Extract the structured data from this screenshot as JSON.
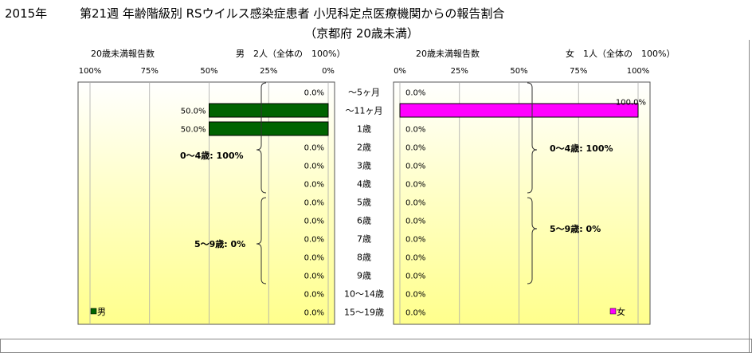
{
  "title": {
    "year": "2015年",
    "line1": "第21週 年齢階級別 RSウイルス感染症患者 小児科定点医療機関からの報告割合",
    "line2": "（京都府 20歳未満）"
  },
  "chart_data": {
    "type": "bar",
    "orientation": "horizontal",
    "categories": [
      "～5ヶ月",
      "～11ヶ月",
      "1歳",
      "2歳",
      "3歳",
      "4歳",
      "5歳",
      "6歳",
      "7歳",
      "8歳",
      "9歳",
      "10～14歳",
      "15～19歳"
    ],
    "xlim": [
      0,
      100
    ],
    "tick_labels": [
      "0%",
      "25%",
      "50%",
      "75%",
      "100%"
    ],
    "male": {
      "header_left": "20歳未満報告数",
      "header_right": "男　2人（全体の　100%）",
      "legend": "男",
      "color": "#006400",
      "values": [
        0,
        50,
        50,
        0,
        0,
        0,
        0,
        0,
        0,
        0,
        0,
        0,
        0
      ],
      "value_labels": [
        "0.0%",
        "50.0%",
        "50.0%",
        "0.0%",
        "0.0%",
        "0.0%",
        "0.0%",
        "0.0%",
        "0.0%",
        "0.0%",
        "0.0%",
        "0.0%",
        "0.0%"
      ],
      "group_labels": [
        "0～4歳: 100%",
        "5～9歳: 0%"
      ]
    },
    "female": {
      "header_left": "20歳未満報告数",
      "header_right": "女　1人（全体の　100%）",
      "legend": "女",
      "color": "#ff00ff",
      "values": [
        0,
        100,
        0,
        0,
        0,
        0,
        0,
        0,
        0,
        0,
        0,
        0,
        0
      ],
      "value_labels": [
        "0.0%",
        "100.0%",
        "0.0%",
        "0.0%",
        "0.0%",
        "0.0%",
        "0.0%",
        "0.0%",
        "0.0%",
        "0.0%",
        "0.0%",
        "0.0%",
        "0.0%"
      ],
      "group_labels": [
        "0～4歳: 100%",
        "5～9歳: 0%"
      ]
    }
  }
}
